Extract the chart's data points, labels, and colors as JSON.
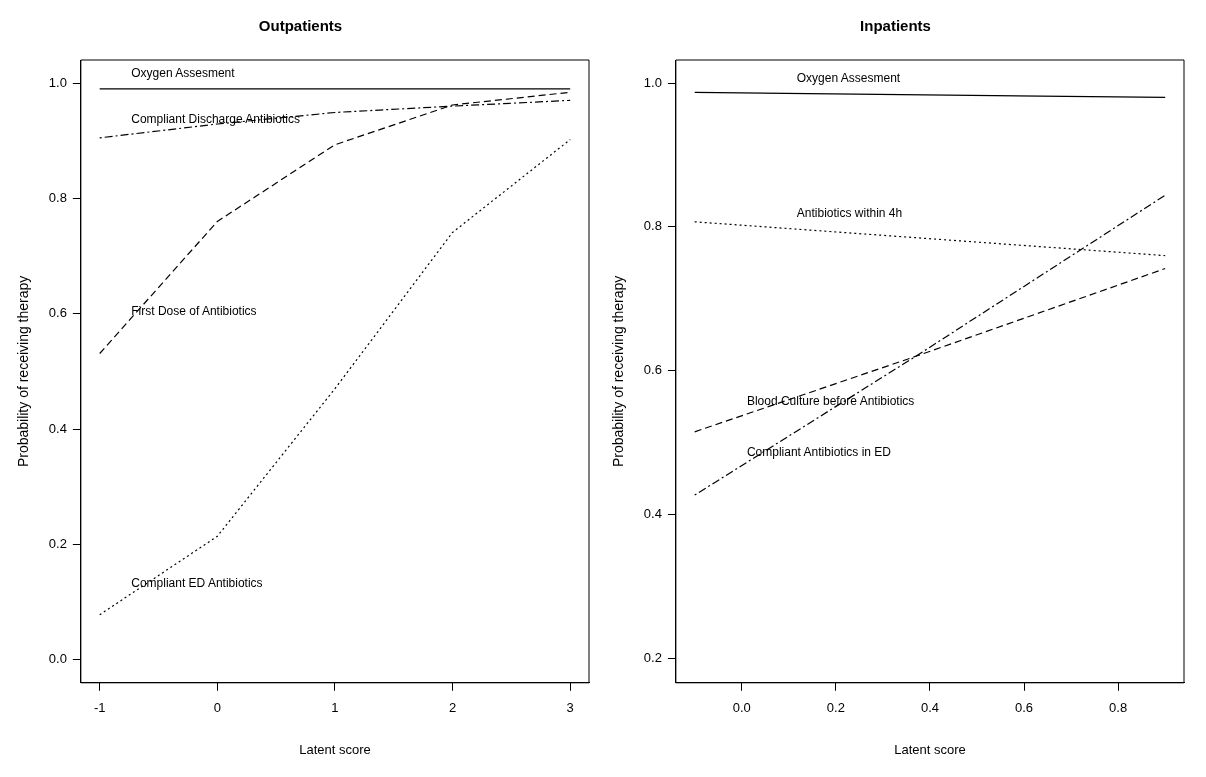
{
  "chart_data": [
    {
      "type": "line",
      "title": "Outpatients",
      "xlabel": "Latent score",
      "ylabel": "Probability of receiving therapy",
      "xlim": [
        -1.16,
        3.16
      ],
      "ylim": [
        -0.04,
        1.04
      ],
      "xticks": [
        -1,
        0,
        1,
        2,
        3
      ],
      "yticks": [
        {
          "value": 0,
          "label": "0.0"
        },
        {
          "value": 0.2,
          "label": "0.2"
        },
        {
          "value": 0.4,
          "label": "0.4"
        },
        {
          "value": 0.6,
          "label": "0.6"
        },
        {
          "value": 0.8,
          "label": "0.8"
        },
        {
          "value": 1,
          "label": "1.0"
        }
      ],
      "marker": "none",
      "series": [
        {
          "name": "Oxygen Assesment",
          "color": "#000000",
          "line_style": "solid",
          "x": [
            -1,
            0,
            1,
            2,
            3
          ],
          "values": [
            0.99,
            0.99,
            0.99,
            0.99,
            0.99
          ]
        },
        {
          "name": "Compliant Discharge Antibiotics",
          "color": "#000000",
          "line_style": "dotdash",
          "x": [
            -1,
            0,
            1,
            2,
            3
          ],
          "values": [
            0.905,
            0.929,
            0.949,
            0.96,
            0.97
          ]
        },
        {
          "name": "First Dose of Antibiotics",
          "color": "#000000",
          "line_style": "dashed",
          "x": [
            -1,
            0,
            1,
            2,
            3
          ],
          "values": [
            0.531,
            0.76,
            0.893,
            0.962,
            0.984
          ]
        },
        {
          "name": "Compliant ED Antibiotics",
          "color": "#000000",
          "line_style": "dotted",
          "x": [
            -1,
            0,
            1,
            2,
            3
          ],
          "values": [
            0.078,
            0.214,
            0.47,
            0.741,
            0.902
          ]
        }
      ]
    },
    {
      "type": "line",
      "title": "Inpatients",
      "xlabel": "Latent score",
      "ylabel": "Probability of receiving therapy",
      "xlim": [
        -0.14,
        0.94
      ],
      "ylim": [
        0.166,
        1.032
      ],
      "xticks": [
        {
          "value": 0,
          "label": "0.0"
        },
        {
          "value": 0.2,
          "label": "0.2"
        },
        {
          "value": 0.4,
          "label": "0.4"
        },
        {
          "value": 0.6,
          "label": "0.6"
        },
        {
          "value": 0.8,
          "label": "0.8"
        }
      ],
      "yticks": [
        {
          "value": 0.2,
          "label": "0.2"
        },
        {
          "value": 0.4,
          "label": "0.4"
        },
        {
          "value": 0.6,
          "label": "0.6"
        },
        {
          "value": 0.8,
          "label": "0.8"
        },
        {
          "value": 1,
          "label": "1.0"
        }
      ],
      "marker": "none",
      "series": [
        {
          "name": "Oxygen Assesment",
          "color": "#000000",
          "line_style": "solid",
          "x": [
            -0.1,
            0.9
          ],
          "values": [
            0.987,
            0.98
          ]
        },
        {
          "name": "Antibiotics within 4h",
          "color": "#000000",
          "line_style": "dotted",
          "x": [
            -0.1,
            0.9
          ],
          "values": [
            0.807,
            0.76
          ]
        },
        {
          "name": "Blood Culture before Antibiotics",
          "color": "#000000",
          "line_style": "dashed",
          "x": [
            -0.1,
            0.37,
            0.9
          ],
          "values": [
            0.515,
            0.62,
            0.742
          ]
        },
        {
          "name": "Compliant Antibiotics in ED",
          "color": "#000000",
          "line_style": "dotdash",
          "x": [
            -0.1,
            0.37,
            0.9
          ],
          "values": [
            0.427,
            0.62,
            0.844
          ]
        }
      ]
    }
  ]
}
